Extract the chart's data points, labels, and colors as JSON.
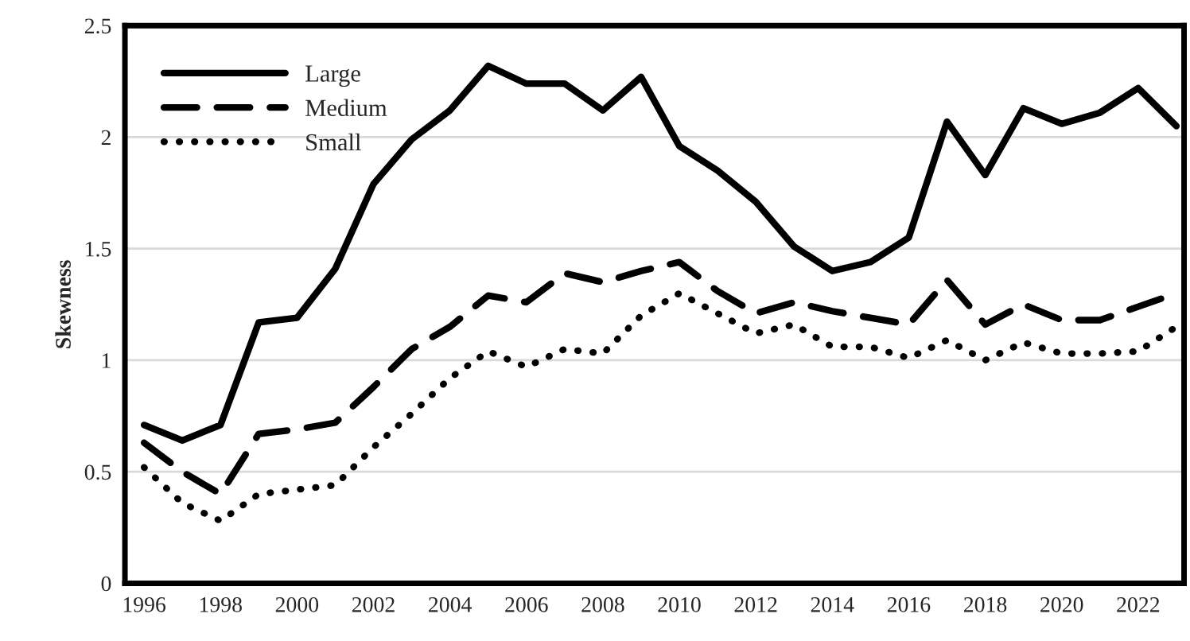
{
  "chart_data": {
    "type": "line",
    "ylabel": "Skewness",
    "x": [
      1996,
      1997,
      1998,
      1999,
      2000,
      2001,
      2002,
      2003,
      2004,
      2005,
      2006,
      2007,
      2008,
      2009,
      2010,
      2011,
      2012,
      2013,
      2014,
      2015,
      2016,
      2017,
      2018,
      2019,
      2020,
      2021,
      2022,
      2023
    ],
    "series": [
      {
        "name": "Large",
        "color": "#000000",
        "line_style": "solid",
        "values": [
          0.71,
          0.64,
          0.71,
          1.17,
          1.19,
          1.41,
          1.79,
          1.99,
          2.12,
          2.32,
          2.24,
          2.24,
          2.12,
          2.27,
          1.96,
          1.85,
          1.71,
          1.51,
          1.4,
          1.44,
          1.55,
          2.07,
          1.83,
          2.13,
          2.06,
          2.11,
          2.22,
          2.05
        ]
      },
      {
        "name": "Medium",
        "color": "#000000",
        "line_style": "dashed",
        "values": [
          0.63,
          0.5,
          0.4,
          0.67,
          0.69,
          0.72,
          0.88,
          1.05,
          1.15,
          1.29,
          1.26,
          1.39,
          1.35,
          1.4,
          1.44,
          1.31,
          1.21,
          1.26,
          1.22,
          1.19,
          1.16,
          1.36,
          1.16,
          1.25,
          1.18,
          1.18,
          1.24,
          1.3
        ]
      },
      {
        "name": "Small",
        "color": "#000000",
        "line_style": "dotted",
        "values": [
          0.52,
          0.36,
          0.28,
          0.4,
          0.42,
          0.44,
          0.61,
          0.76,
          0.92,
          1.04,
          0.97,
          1.05,
          1.03,
          1.2,
          1.3,
          1.21,
          1.12,
          1.16,
          1.06,
          1.06,
          1.01,
          1.09,
          1.0,
          1.08,
          1.03,
          1.03,
          1.04,
          1.15
        ]
      }
    ],
    "xlim": [
      1995.5,
      2023.2
    ],
    "xticks": [
      1996,
      1998,
      2000,
      2002,
      2004,
      2006,
      2008,
      2010,
      2012,
      2014,
      2016,
      2018,
      2020,
      2022
    ],
    "ylim": [
      0,
      2.5
    ],
    "yticks": [
      0,
      0.5,
      1,
      1.5,
      2,
      2.5
    ],
    "grid": "y",
    "legend": "top left",
    "marker": "none"
  }
}
